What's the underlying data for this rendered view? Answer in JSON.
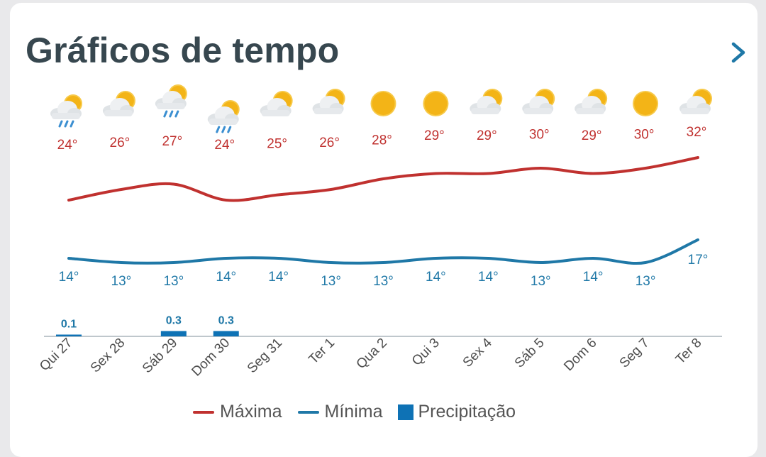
{
  "header": {
    "title": "Gráficos de tempo",
    "next_icon": "chevron-right-icon"
  },
  "colors": {
    "max": "#c0312f",
    "min": "#1f78a7",
    "precip": "#0e72b5",
    "axis": "#bfc7cc"
  },
  "legend": {
    "max_label": "Máxima",
    "min_label": "Mínima",
    "precip_label": "Precipitação"
  },
  "chart_data": {
    "type": "line",
    "categories": [
      "Qui 27",
      "Sex 28",
      "Sáb 29",
      "Dom 30",
      "Seg 31",
      "Ter 1",
      "Qua 2",
      "Qui 3",
      "Sex 4",
      "Sáb 5",
      "Dom 6",
      "Seg 7",
      "Ter 8"
    ],
    "icons": [
      "rain",
      "partly-cloudy",
      "rain",
      "rain",
      "partly-cloudy",
      "partly-cloudy",
      "sunny",
      "sunny",
      "partly-cloudy",
      "partly-cloudy",
      "partly-cloudy",
      "sunny",
      "partly-cloudy"
    ],
    "series": [
      {
        "name": "Máxima",
        "unit": "°",
        "values": [
          24,
          26,
          27,
          24,
          25,
          26,
          28,
          29,
          29,
          30,
          29,
          30,
          32
        ],
        "labels": [
          "24°",
          "26°",
          "27°",
          "24°",
          "25°",
          "26°",
          "28°",
          "29°",
          "29°",
          "30°",
          "29°",
          "30°",
          "32°"
        ]
      },
      {
        "name": "Mínima",
        "unit": "°",
        "values": [
          14,
          13,
          13,
          14,
          14,
          13,
          13,
          14,
          14,
          13,
          14,
          13,
          17
        ],
        "labels": [
          "14°",
          "13°",
          "13°",
          "14°",
          "14°",
          "13°",
          "13°",
          "14°",
          "14°",
          "13°",
          "14°",
          "13°",
          "17°"
        ]
      },
      {
        "name": "Precipitação",
        "values": [
          0.1,
          0,
          0.3,
          0.3,
          0,
          0,
          0,
          0,
          0,
          0,
          0,
          0,
          0
        ],
        "labels": [
          "0.1",
          "",
          "0.3",
          "0.3",
          "",
          "",
          "",
          "",
          "",
          "",
          "",
          "",
          ""
        ]
      }
    ]
  }
}
